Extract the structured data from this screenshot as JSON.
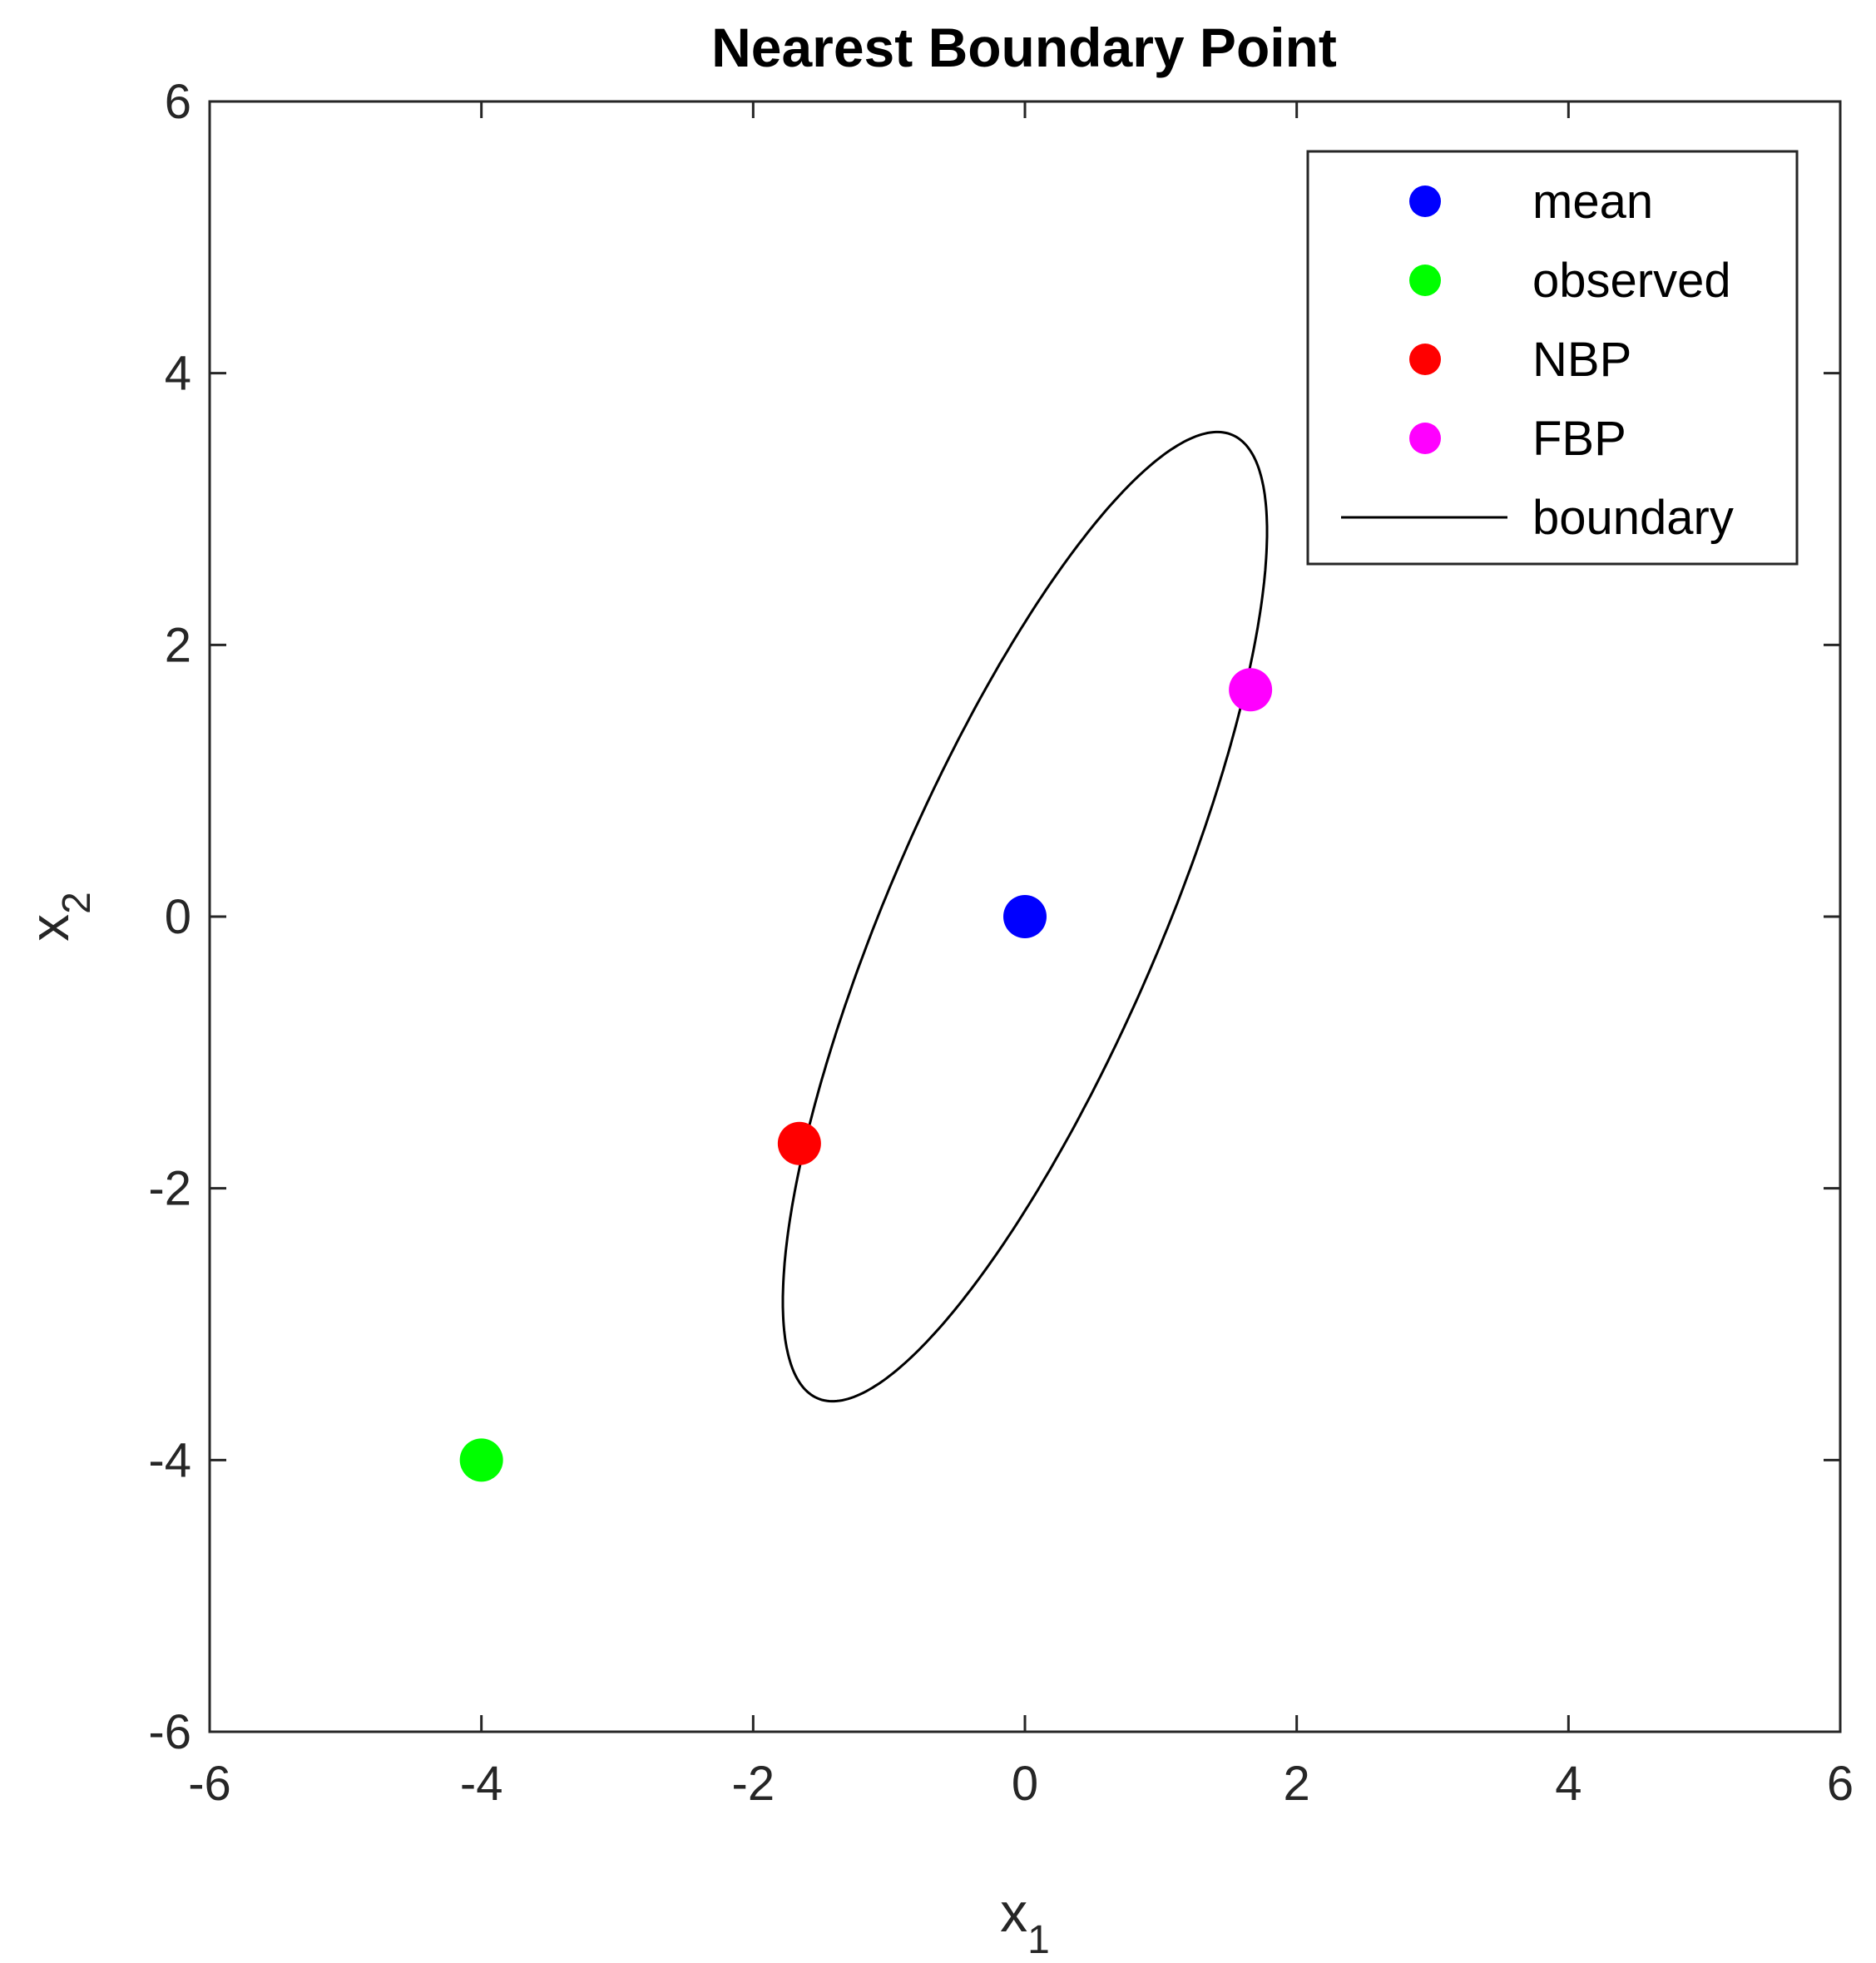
{
  "chart_data": {
    "type": "scatter",
    "title": "Nearest Boundary Point",
    "xlabel": {
      "base": "x",
      "sub": "1"
    },
    "ylabel": {
      "base": "x",
      "sub": "2"
    },
    "xlim": [
      -6,
      6
    ],
    "ylim": [
      -6,
      6
    ],
    "xticks": [
      -6,
      -4,
      -2,
      0,
      2,
      4,
      6
    ],
    "yticks": [
      -6,
      -4,
      -2,
      0,
      2,
      4,
      6
    ],
    "grid": false,
    "legend_position": "top-right",
    "series": [
      {
        "name": "mean",
        "kind": "point",
        "color": "#0000ff",
        "x": 0,
        "y": 0
      },
      {
        "name": "observed",
        "kind": "point",
        "color": "#00ff00",
        "x": -4,
        "y": -4
      },
      {
        "name": "NBP",
        "kind": "point",
        "color": "#ff0000",
        "x": -1.66,
        "y": -1.67
      },
      {
        "name": "FBP",
        "kind": "point",
        "color": "#ff00ff",
        "x": 1.66,
        "y": 1.67
      },
      {
        "name": "boundary",
        "kind": "ellipse",
        "color": "#000000",
        "center": [
          0,
          0
        ],
        "major_axis_deg": 66.7,
        "semi_major": 3.86,
        "semi_minor": 1.0
      }
    ]
  }
}
